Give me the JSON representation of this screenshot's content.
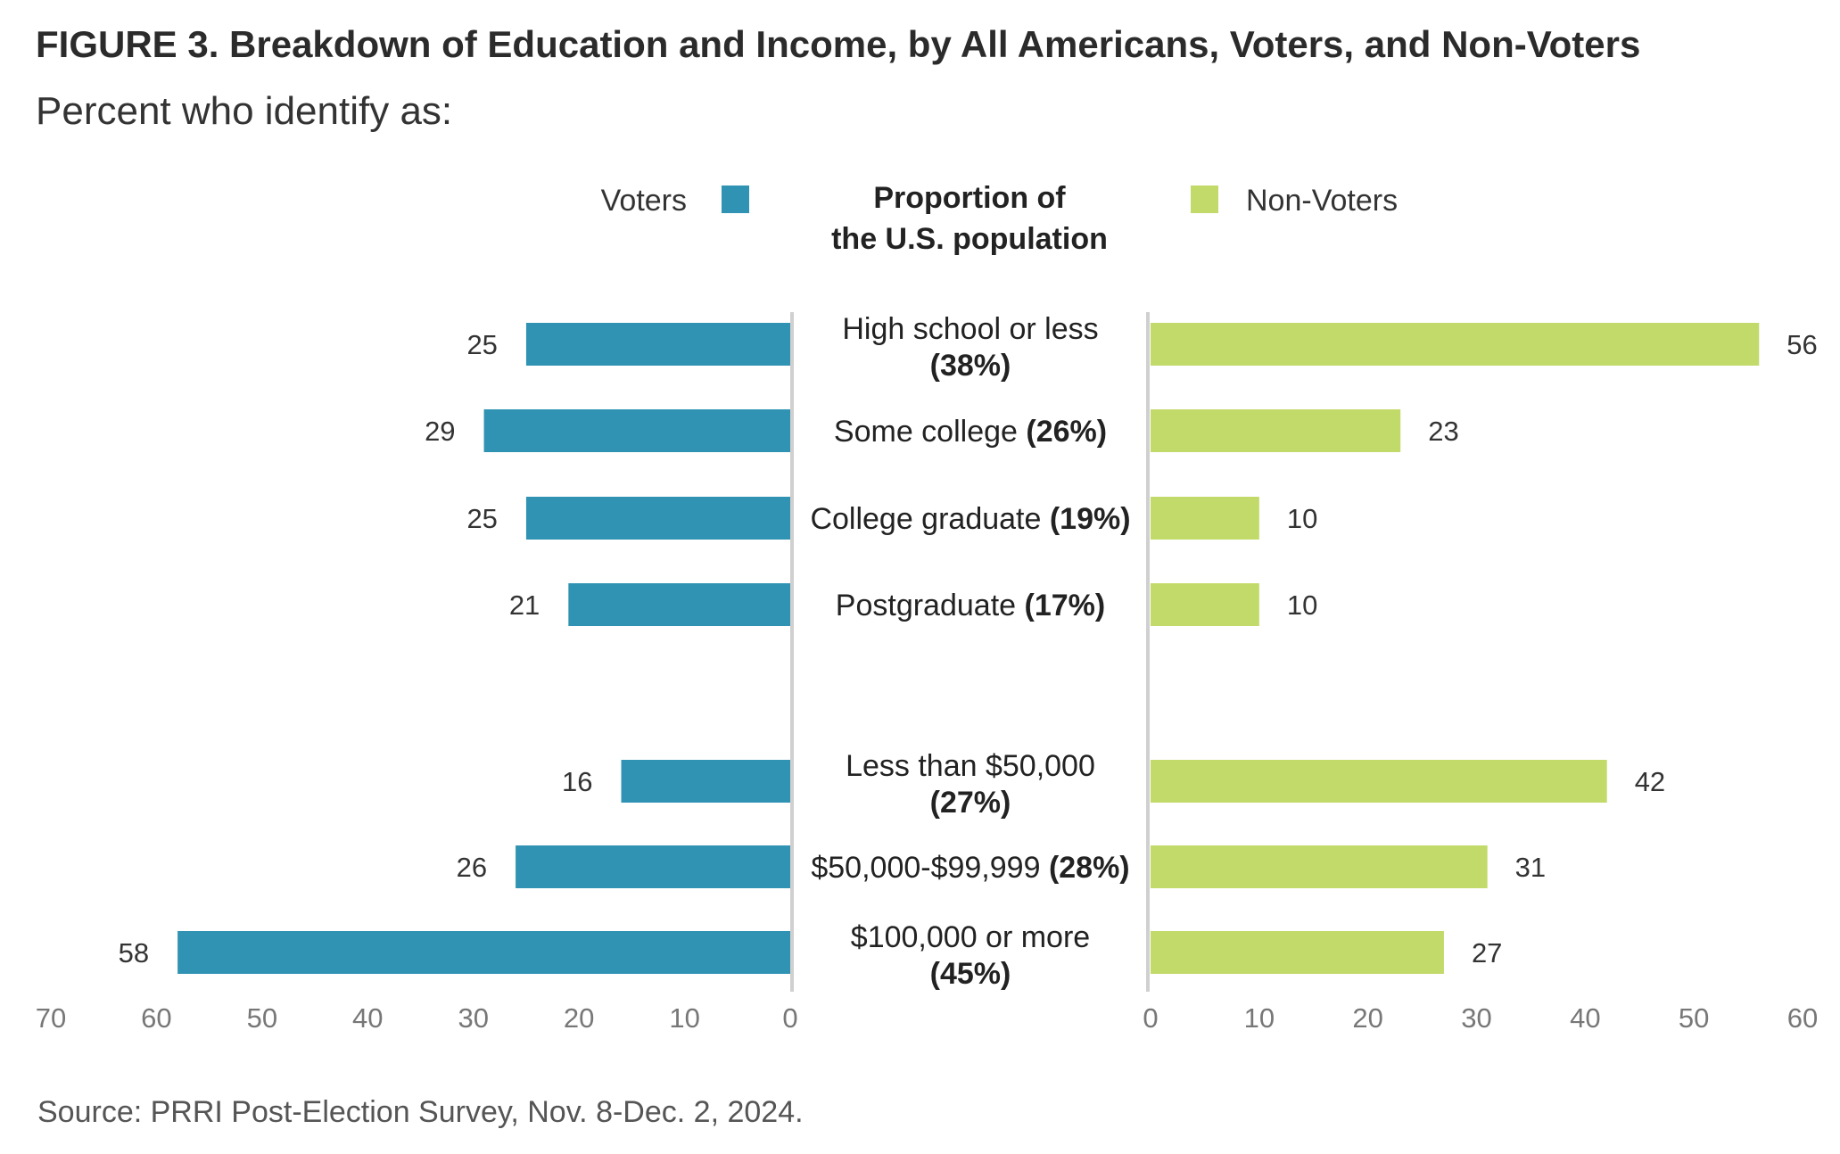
{
  "figure": {
    "title": "FIGURE 3.  Breakdown of Education and Income, by All Americans, Voters, and Non-Voters",
    "subtitle": "Percent who identify as:",
    "source": "Source: PRRI Post-Election Survey, Nov. 8-Dec. 2, 2024."
  },
  "chart_data": {
    "type": "bar",
    "orientation": "horizontal-diverging",
    "legend": {
      "left": "Voters",
      "center_line1": "Proportion of",
      "center_line2": "the U.S. population",
      "right": "Non-Voters"
    },
    "categories": [
      {
        "name": "High school or less",
        "pct": "(38%)",
        "group": "education",
        "wrap": true
      },
      {
        "name": "Some college",
        "pct": "(26%)",
        "group": "education",
        "wrap": false
      },
      {
        "name": "College graduate",
        "pct": "(19%)",
        "group": "education",
        "wrap": false
      },
      {
        "name": "Postgraduate",
        "pct": "(17%)",
        "group": "education",
        "wrap": false
      },
      {
        "name": "Less than $50,000",
        "pct": "(27%)",
        "group": "income",
        "wrap": true
      },
      {
        "name": "$50,000-$99,999",
        "pct": "(28%)",
        "group": "income",
        "wrap": false
      },
      {
        "name": "$100,000 or more",
        "pct": "(45%)",
        "group": "income",
        "wrap": true
      }
    ],
    "series": [
      {
        "name": "Voters",
        "color": "#3093b3",
        "values": [
          25,
          29,
          25,
          21,
          16,
          26,
          58
        ]
      },
      {
        "name": "Non-Voters",
        "color": "#c2da6a",
        "values": [
          56,
          23,
          10,
          10,
          42,
          31,
          27
        ]
      }
    ],
    "left_axis": {
      "range": [
        0,
        70
      ],
      "ticks": [
        70,
        60,
        50,
        40,
        30,
        20,
        10,
        0
      ]
    },
    "right_axis": {
      "range": [
        0,
        60
      ],
      "ticks": [
        0,
        10,
        20,
        30,
        40,
        50,
        60
      ]
    },
    "grid": false
  }
}
